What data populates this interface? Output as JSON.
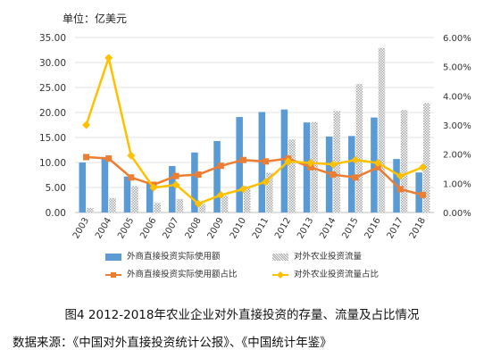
{
  "chart_data": {
    "type": "bar",
    "unit_label": "单位：亿美元",
    "categories": [
      "2003",
      "2004",
      "2005",
      "2006",
      "2007",
      "2008",
      "2009",
      "2010",
      "2011",
      "2012",
      "2013",
      "2014",
      "2015",
      "2016",
      "2017",
      "2018"
    ],
    "left_axis": {
      "ylim": [
        0,
        35
      ],
      "ticks": [
        "0.00",
        "5.00",
        "10.00",
        "15.00",
        "20.00",
        "25.00",
        "30.00",
        "35.00"
      ]
    },
    "right_axis": {
      "ylim": [
        0,
        6
      ],
      "ticks": [
        "0.00%",
        "1.00%",
        "2.00%",
        "3.00%",
        "4.00%",
        "5.00%",
        "6.00%"
      ]
    },
    "series": [
      {
        "name": "外商直接投资实际使用额",
        "kind": "bar",
        "axis": "left",
        "color": "#5b9bd5",
        "values": [
          10.0,
          11.1,
          7.2,
          6.0,
          9.3,
          12.0,
          14.3,
          19.1,
          20.1,
          20.6,
          18.0,
          15.2,
          15.3,
          19.0,
          10.7,
          8.0
        ]
      },
      {
        "name": "对外农业投资流量",
        "kind": "bar",
        "axis": "left",
        "color": "#bfbfbf",
        "pattern": "dots",
        "values": [
          0.9,
          2.9,
          5.3,
          1.9,
          2.7,
          1.7,
          3.4,
          5.3,
          7.9,
          14.6,
          18.1,
          20.3,
          25.7,
          32.9,
          20.5,
          21.9
        ]
      },
      {
        "name": "外商直接投资实际使用额占比",
        "kind": "line",
        "axis": "right",
        "color": "#ed7d31",
        "marker": "square",
        "values": [
          1.9,
          1.85,
          1.2,
          0.95,
          1.25,
          1.3,
          1.6,
          1.8,
          1.75,
          1.85,
          1.55,
          1.3,
          1.2,
          1.55,
          0.8,
          0.6
        ]
      },
      {
        "name": "对外农业投资流量占比",
        "kind": "line",
        "axis": "right",
        "color": "#ffc000",
        "marker": "diamond",
        "values": [
          3.0,
          5.3,
          1.95,
          0.85,
          0.95,
          0.3,
          0.6,
          0.8,
          1.05,
          1.75,
          1.7,
          1.65,
          1.8,
          1.7,
          1.25,
          1.55
        ]
      }
    ]
  },
  "caption": "图4  2012-2018年农业企业对外直接投资的存量、流量及占比情况",
  "source": "数据来源：《中国对外直接投资统计公报》、《中国统计年鉴》"
}
